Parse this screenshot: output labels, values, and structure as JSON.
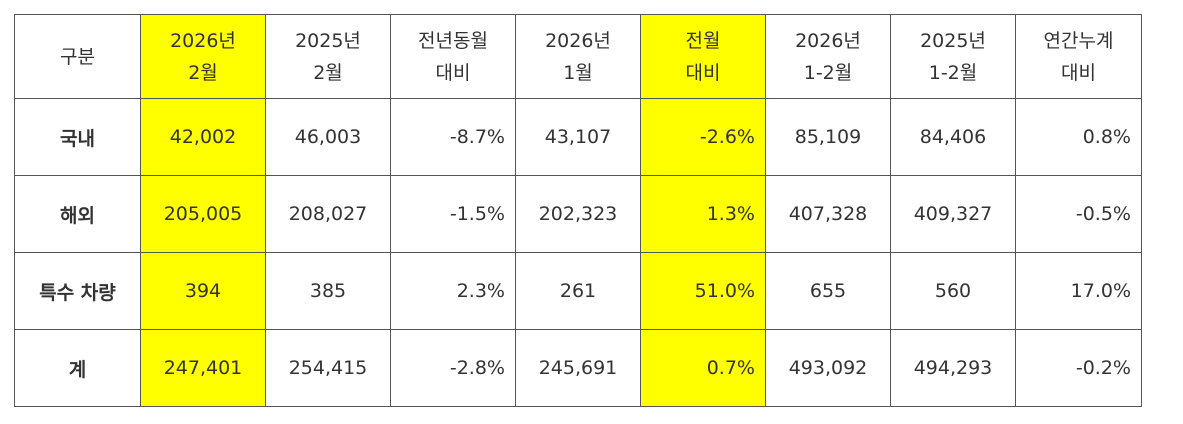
{
  "table": {
    "highlight_columns": [
      1,
      5
    ],
    "highlight_color": "#ffff00",
    "header": [
      [
        "구분"
      ],
      [
        "2026년",
        "2월"
      ],
      [
        "2025년",
        "2월"
      ],
      [
        "전년동월",
        "대비"
      ],
      [
        "2026년",
        "1월"
      ],
      [
        "전월",
        "대비"
      ],
      [
        "2026년",
        "1-2월"
      ],
      [
        "2025년",
        "1-2월"
      ],
      [
        "연간누계",
        "대비"
      ]
    ],
    "rows": [
      [
        "국내",
        "42,002",
        "46,003",
        "-8.7%",
        "43,107",
        "-2.6%",
        "85,109",
        "84,406",
        "0.8%"
      ],
      [
        "해외",
        "205,005",
        "208,027",
        "-1.5%",
        "202,323",
        "1.3%",
        "407,328",
        "409,327",
        "-0.5%"
      ],
      [
        "특수 차량",
        "394",
        "385",
        "2.3%",
        "261",
        "51.0%",
        "655",
        "560",
        "17.0%"
      ],
      [
        "계",
        "247,401",
        "254,415",
        "-2.8%",
        "245,691",
        "0.7%",
        "493,092",
        "494,293",
        "-0.2%"
      ]
    ]
  }
}
